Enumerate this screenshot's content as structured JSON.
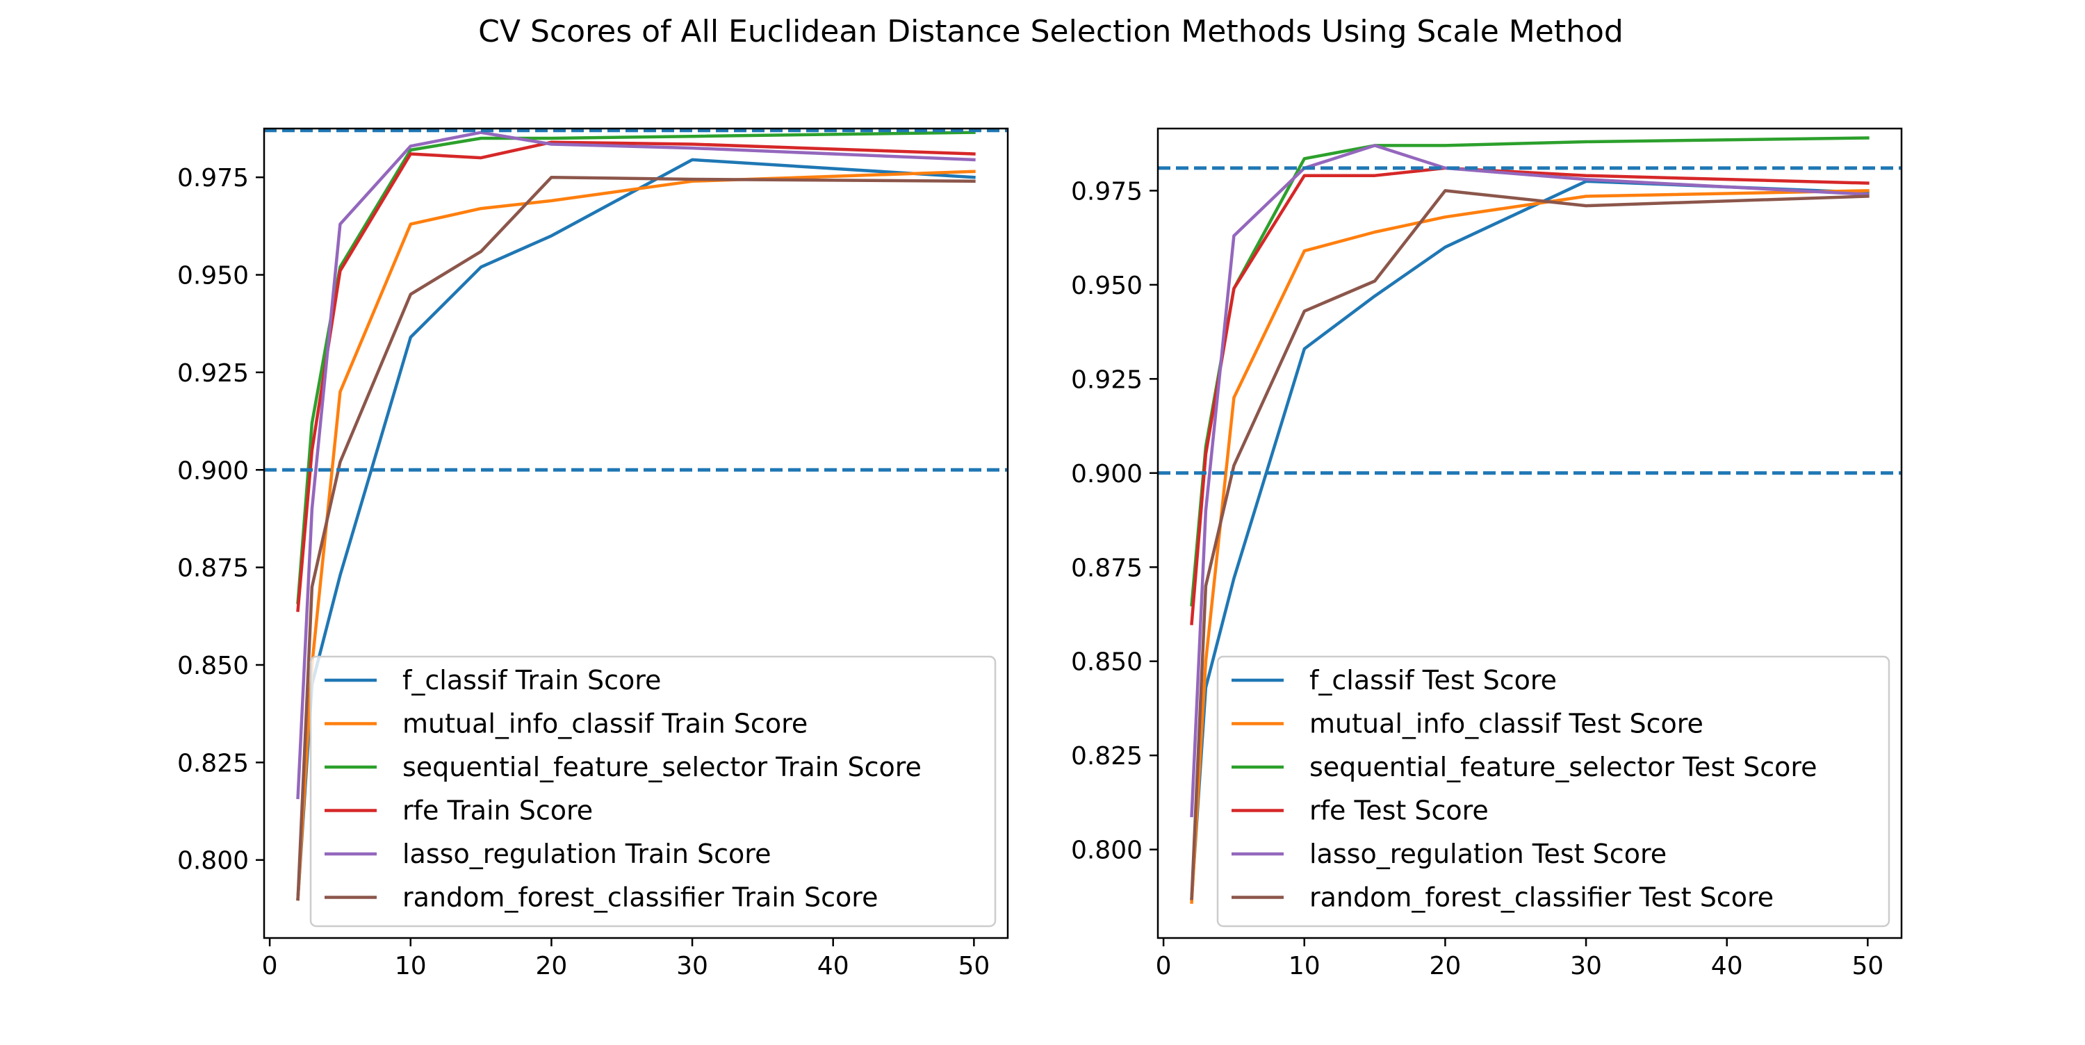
{
  "figure": {
    "title": "CV Scores of All Euclidean Distance Selection Methods Using Scale Method"
  },
  "chart_data": [
    {
      "type": "line",
      "x": [
        2,
        3,
        5,
        10,
        15,
        20,
        30,
        50
      ],
      "xlim": [
        -0.4,
        52.4
      ],
      "ylim": [
        0.78,
        0.9875
      ],
      "xticks": [
        "0",
        "10",
        "20",
        "30",
        "40",
        "50"
      ],
      "yticks": [
        "0.800",
        "0.825",
        "0.850",
        "0.875",
        "0.900",
        "0.925",
        "0.950",
        "0.975"
      ],
      "ytick_values": [
        0.8,
        0.825,
        0.85,
        0.875,
        0.9,
        0.925,
        0.95,
        0.975
      ],
      "hlines": [
        {
          "y": 0.987,
          "color": "#1f77b4",
          "style": "dashed"
        },
        {
          "y": 0.9,
          "color": "#1f77b4",
          "style": "dashed"
        }
      ],
      "legend": "lower-right",
      "grid": false,
      "series": [
        {
          "name": "f_classif Train Score",
          "color": "#1f77b4",
          "values": [
            0.79,
            0.845,
            0.873,
            0.934,
            0.952,
            0.96,
            0.9795,
            0.975
          ]
        },
        {
          "name": "mutual_info_classif Train Score",
          "color": "#ff7f0e",
          "values": [
            0.79,
            0.85,
            0.92,
            0.963,
            0.967,
            0.969,
            0.974,
            0.9765
          ]
        },
        {
          "name": "sequential_feature_selector Train Score",
          "color": "#2ca02c",
          "values": [
            0.866,
            0.912,
            0.952,
            0.982,
            0.985,
            0.985,
            0.9855,
            0.9865
          ]
        },
        {
          "name": "rfe Train Score",
          "color": "#d62728",
          "values": [
            0.864,
            0.905,
            0.951,
            0.981,
            0.98,
            0.984,
            0.9835,
            0.981
          ]
        },
        {
          "name": "lasso_regulation Train Score",
          "color": "#9467bd",
          "values": [
            0.816,
            0.89,
            0.963,
            0.983,
            0.9865,
            0.9835,
            0.9825,
            0.9795
          ]
        },
        {
          "name": "random_forest_classifier Train Score",
          "color": "#8c564b",
          "values": [
            0.79,
            0.87,
            0.902,
            0.945,
            0.956,
            0.975,
            0.9745,
            0.974
          ]
        }
      ]
    },
    {
      "type": "line",
      "x": [
        2,
        3,
        5,
        10,
        15,
        20,
        30,
        50
      ],
      "xlim": [
        -0.4,
        52.4
      ],
      "ylim": [
        0.7765,
        0.9915
      ],
      "xticks": [
        "0",
        "10",
        "20",
        "30",
        "40",
        "50"
      ],
      "yticks": [
        "0.800",
        "0.825",
        "0.850",
        "0.875",
        "0.900",
        "0.925",
        "0.950",
        "0.975"
      ],
      "ytick_values": [
        0.8,
        0.825,
        0.85,
        0.875,
        0.9,
        0.925,
        0.95,
        0.975
      ],
      "hlines": [
        {
          "y": 0.981,
          "color": "#1f77b4",
          "style": "dashed"
        },
        {
          "y": 0.9,
          "color": "#1f77b4",
          "style": "dashed"
        }
      ],
      "legend": "lower-right",
      "grid": false,
      "series": [
        {
          "name": "f_classif Test Score",
          "color": "#1f77b4",
          "values": [
            0.787,
            0.843,
            0.872,
            0.933,
            0.947,
            0.96,
            0.9775,
            0.9745
          ]
        },
        {
          "name": "mutual_info_classif Test Score",
          "color": "#ff7f0e",
          "values": [
            0.786,
            0.85,
            0.92,
            0.959,
            0.964,
            0.968,
            0.9735,
            0.975
          ]
        },
        {
          "name": "sequential_feature_selector Test Score",
          "color": "#2ca02c",
          "values": [
            0.865,
            0.907,
            0.949,
            0.9835,
            0.987,
            0.987,
            0.988,
            0.989
          ]
        },
        {
          "name": "rfe Test Score",
          "color": "#d62728",
          "values": [
            0.86,
            0.905,
            0.949,
            0.979,
            0.979,
            0.981,
            0.979,
            0.977
          ]
        },
        {
          "name": "lasso_regulation Test Score",
          "color": "#9467bd",
          "values": [
            0.809,
            0.89,
            0.963,
            0.981,
            0.987,
            0.981,
            0.978,
            0.974
          ]
        },
        {
          "name": "random_forest_classifier Test Score",
          "color": "#8c564b",
          "values": [
            0.787,
            0.87,
            0.902,
            0.943,
            0.951,
            0.975,
            0.971,
            0.9735
          ]
        }
      ]
    }
  ]
}
